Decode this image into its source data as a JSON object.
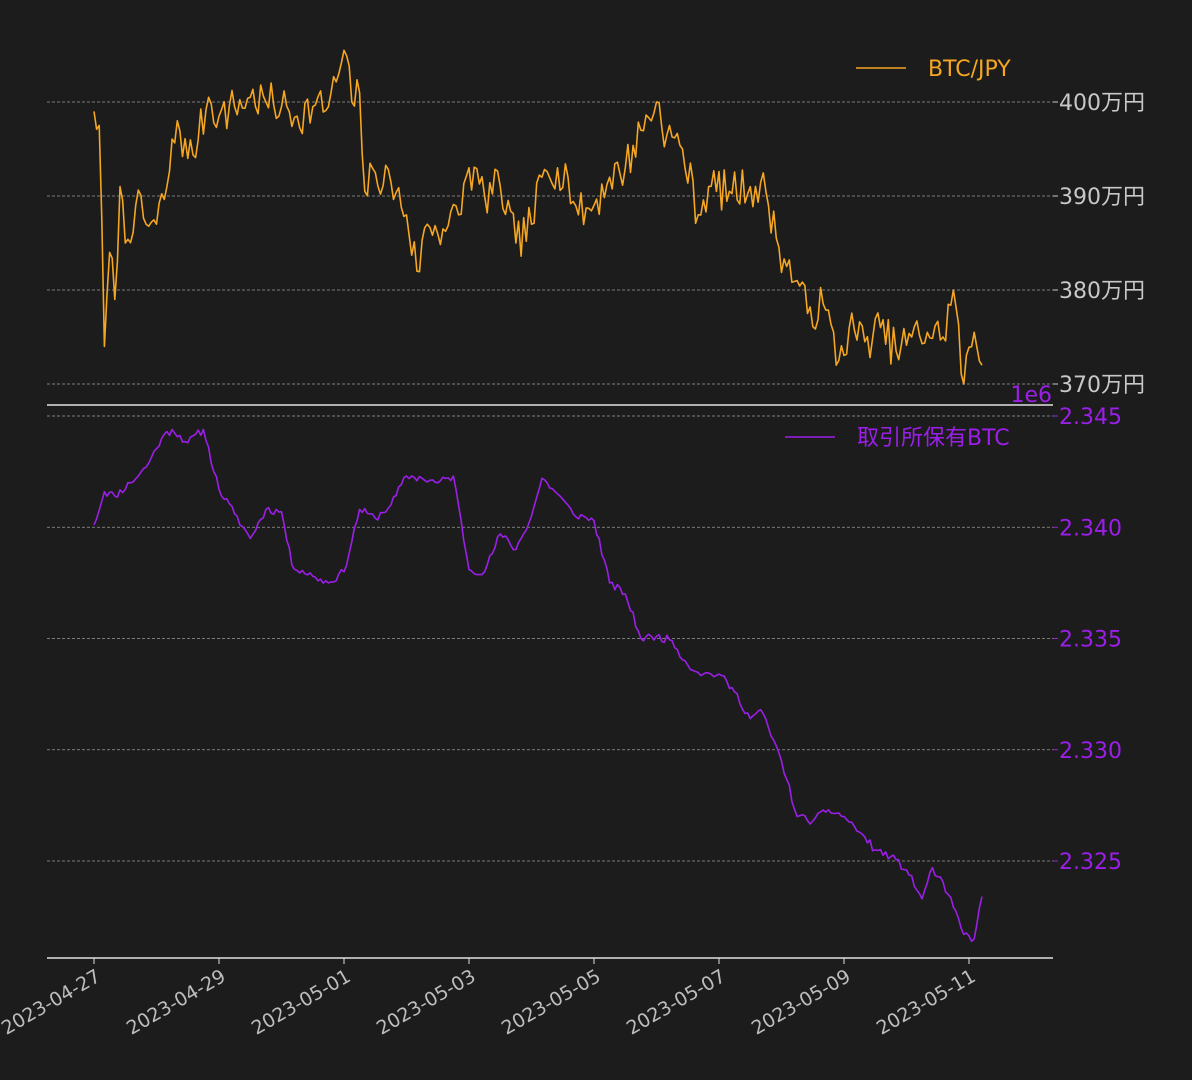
{
  "colors": {
    "background": "#1c1c1c",
    "btc_line": "#f5a623",
    "holdings_line": "#9b1fe8",
    "axis_text_top": "#c8c8c8",
    "axis_line": "#e0e0e0",
    "grid": "#9a9a9a"
  },
  "chart_data": [
    {
      "type": "line",
      "panel": "top",
      "series": [
        {
          "name": "BTC/JPY",
          "color": "#f5a623"
        }
      ],
      "x": [
        "2023-04-27",
        "2023-05-11"
      ],
      "ylim": [
        3690000,
        4060000
      ],
      "yticks": [
        3700000,
        3800000,
        3900000,
        4000000
      ],
      "ytick_labels": [
        "370万円",
        "380万円",
        "390万円",
        "400万円"
      ],
      "ytick_side": "right",
      "grid": "horizontal dashed",
      "legend": "top-right",
      "anchors": [
        [
          "2023-04-27 00:00",
          3990000
        ],
        [
          "2023-04-27 02:00",
          3975000
        ],
        [
          "2023-04-27 04:00",
          3740000
        ],
        [
          "2023-04-27 06:00",
          3840000
        ],
        [
          "2023-04-27 08:00",
          3790000
        ],
        [
          "2023-04-27 10:00",
          3910000
        ],
        [
          "2023-04-27 12:00",
          3850000
        ],
        [
          "2023-04-27 16:00",
          3890000
        ],
        [
          "2023-04-27 20:00",
          3870000
        ],
        [
          "2023-04-28 00:00",
          3870000
        ],
        [
          "2023-04-28 04:00",
          3910000
        ],
        [
          "2023-04-28 08:00",
          3980000
        ],
        [
          "2023-04-28 12:00",
          3940000
        ],
        [
          "2023-04-28 16:00",
          3960000
        ],
        [
          "2023-04-28 20:00",
          4005000
        ],
        [
          "2023-04-29 00:00",
          3985000
        ],
        [
          "2023-04-29 06:00",
          3995000
        ],
        [
          "2023-04-29 12:00",
          4005000
        ],
        [
          "2023-04-29 18:00",
          4000000
        ],
        [
          "2023-04-30 00:00",
          3995000
        ],
        [
          "2023-04-30 06:00",
          3985000
        ],
        [
          "2023-04-30 12:00",
          3995000
        ],
        [
          "2023-04-30 18:00",
          3995000
        ],
        [
          "2023-04-30 22:00",
          4030000
        ],
        [
          "2023-05-01 00:00",
          4055000
        ],
        [
          "2023-05-01 03:00",
          4000000
        ],
        [
          "2023-05-01 06:00",
          4010000
        ],
        [
          "2023-05-01 08:00",
          3905000
        ],
        [
          "2023-05-01 12:00",
          3925000
        ],
        [
          "2023-05-01 18:00",
          3915000
        ],
        [
          "2023-05-02 00:00",
          3880000
        ],
        [
          "2023-05-02 04:00",
          3820000
        ],
        [
          "2023-05-02 08:00",
          3870000
        ],
        [
          "2023-05-02 14:00",
          3865000
        ],
        [
          "2023-05-02 20:00",
          3880000
        ],
        [
          "2023-05-03 00:00",
          3930000
        ],
        [
          "2023-05-03 06:00",
          3900000
        ],
        [
          "2023-05-03 12:00",
          3910000
        ],
        [
          "2023-05-03 18:00",
          3850000
        ],
        [
          "2023-05-04 00:00",
          3870000
        ],
        [
          "2023-05-04 04:00",
          3920000
        ],
        [
          "2023-05-04 10:00",
          3930000
        ],
        [
          "2023-05-04 14:00",
          3920000
        ],
        [
          "2023-05-04 18:00",
          3880000
        ],
        [
          "2023-05-05 00:00",
          3890000
        ],
        [
          "2023-05-05 06:00",
          3920000
        ],
        [
          "2023-05-05 12:00",
          3930000
        ],
        [
          "2023-05-05 18:00",
          3970000
        ],
        [
          "2023-05-06 00:00",
          4000000
        ],
        [
          "2023-05-06 04:00",
          3965000
        ],
        [
          "2023-05-06 10:00",
          3950000
        ],
        [
          "2023-05-06 16:00",
          3880000
        ],
        [
          "2023-05-06 20:00",
          3910000
        ],
        [
          "2023-05-07 04:00",
          3905000
        ],
        [
          "2023-05-07 12:00",
          3910000
        ],
        [
          "2023-05-07 18:00",
          3905000
        ],
        [
          "2023-05-07 22:00",
          3855000
        ],
        [
          "2023-05-08 02:00",
          3825000
        ],
        [
          "2023-05-08 06:00",
          3810000
        ],
        [
          "2023-05-08 10:00",
          3775000
        ],
        [
          "2023-05-08 16:00",
          3785000
        ],
        [
          "2023-05-08 22:00",
          3725000
        ],
        [
          "2023-05-09 02:00",
          3760000
        ],
        [
          "2023-05-09 08:00",
          3745000
        ],
        [
          "2023-05-09 14:00",
          3760000
        ],
        [
          "2023-05-09 20:00",
          3735000
        ],
        [
          "2023-05-10 02:00",
          3750000
        ],
        [
          "2023-05-10 08:00",
          3755000
        ],
        [
          "2023-05-10 14:00",
          3750000
        ],
        [
          "2023-05-10 18:00",
          3800000
        ],
        [
          "2023-05-10 22:00",
          3700000
        ],
        [
          "2023-05-11 02:00",
          3755000
        ],
        [
          "2023-05-11 05:00",
          3720000
        ]
      ]
    },
    {
      "type": "line",
      "panel": "bottom",
      "series": [
        {
          "name": "取引所保有BTC",
          "color": "#9b1fe8"
        }
      ],
      "x": [
        "2023-04-27",
        "2023-05-11"
      ],
      "ylim": [
        2320500,
        2345000
      ],
      "yticks": [
        2325000,
        2330000,
        2335000,
        2340000,
        2345000
      ],
      "ytick_labels": [
        "2.325",
        "2.330",
        "2.335",
        "2.340",
        "2.345"
      ],
      "offset_label": "1e6",
      "ytick_side": "right",
      "grid": "horizontal dashed",
      "legend": "top-right",
      "anchors": [
        [
          "2023-04-27 00:00",
          2340100
        ],
        [
          "2023-04-27 04:00",
          2341600
        ],
        [
          "2023-04-27 08:00",
          2341400
        ],
        [
          "2023-04-27 14:00",
          2342000
        ],
        [
          "2023-04-27 20:00",
          2342700
        ],
        [
          "2023-04-28 02:00",
          2344000
        ],
        [
          "2023-04-28 06:00",
          2344400
        ],
        [
          "2023-04-28 12:00",
          2343800
        ],
        [
          "2023-04-28 18:00",
          2344400
        ],
        [
          "2023-04-29 00:00",
          2341700
        ],
        [
          "2023-04-29 06:00",
          2340600
        ],
        [
          "2023-04-29 12:00",
          2339500
        ],
        [
          "2023-04-29 18:00",
          2340800
        ],
        [
          "2023-04-30 00:00",
          2340700
        ],
        [
          "2023-04-30 04:00",
          2338300
        ],
        [
          "2023-04-30 12:00",
          2337800
        ],
        [
          "2023-04-30 18:00",
          2337500
        ],
        [
          "2023-05-01 00:00",
          2338000
        ],
        [
          "2023-05-01 06:00",
          2340800
        ],
        [
          "2023-05-01 12:00",
          2340400
        ],
        [
          "2023-05-01 18:00",
          2341000
        ],
        [
          "2023-05-02 00:00",
          2342300
        ],
        [
          "2023-05-02 06:00",
          2342200
        ],
        [
          "2023-05-02 12:00",
          2342000
        ],
        [
          "2023-05-02 18:00",
          2342300
        ],
        [
          "2023-05-03 00:00",
          2338100
        ],
        [
          "2023-05-03 06:00",
          2338000
        ],
        [
          "2023-05-03 12:00",
          2339700
        ],
        [
          "2023-05-03 18:00",
          2339000
        ],
        [
          "2023-05-04 00:00",
          2340500
        ],
        [
          "2023-05-04 04:00",
          2342200
        ],
        [
          "2023-05-04 10:00",
          2341500
        ],
        [
          "2023-05-04 16:00",
          2340600
        ],
        [
          "2023-05-05 00:00",
          2340300
        ],
        [
          "2023-05-05 06:00",
          2337500
        ],
        [
          "2023-05-05 12:00",
          2337000
        ],
        [
          "2023-05-05 18:00",
          2335000
        ],
        [
          "2023-05-06 00:00",
          2335100
        ],
        [
          "2023-05-06 06:00",
          2334900
        ],
        [
          "2023-05-06 12:00",
          2333800
        ],
        [
          "2023-05-06 18:00",
          2333400
        ],
        [
          "2023-05-07 00:00",
          2333400
        ],
        [
          "2023-05-07 06:00",
          2332600
        ],
        [
          "2023-05-07 12:00",
          2331400
        ],
        [
          "2023-05-07 16:00",
          2331800
        ],
        [
          "2023-05-08 00:00",
          2329500
        ],
        [
          "2023-05-08 06:00",
          2327000
        ],
        [
          "2023-05-08 12:00",
          2326800
        ],
        [
          "2023-05-08 18:00",
          2327300
        ],
        [
          "2023-05-09 00:00",
          2327000
        ],
        [
          "2023-05-09 06:00",
          2326300
        ],
        [
          "2023-05-09 12:00",
          2325500
        ],
        [
          "2023-05-09 18:00",
          2325200
        ],
        [
          "2023-05-10 00:00",
          2324600
        ],
        [
          "2023-05-10 06:00",
          2323300
        ],
        [
          "2023-05-10 10:00",
          2324700
        ],
        [
          "2023-05-10 16:00",
          2323500
        ],
        [
          "2023-05-10 22:00",
          2321700
        ],
        [
          "2023-05-11 02:00",
          2321500
        ],
        [
          "2023-05-11 05:00",
          2323400
        ]
      ]
    }
  ],
  "x_axis": {
    "tick_labels": [
      "2023-04-27",
      "2023-04-29",
      "2023-05-01",
      "2023-05-03",
      "2023-05-05",
      "2023-05-07",
      "2023-05-09",
      "2023-05-11"
    ]
  }
}
